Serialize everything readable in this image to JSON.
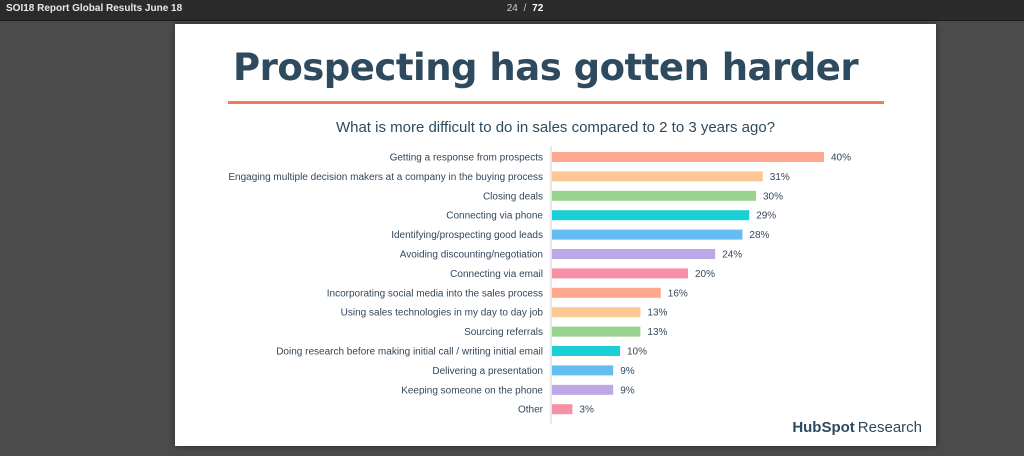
{
  "viewer": {
    "document_title": "SOI18 Report Global Results June 18",
    "current_page": "24",
    "separator": "/",
    "total_pages": "72"
  },
  "slide": {
    "title": "Prospecting has gotten harder",
    "question": "What is more difficult to do in sales compared to 2 to 3 years ago?",
    "brand_primary": "HubSpot",
    "brand_secondary": "Research",
    "accent_color": "#f2795b"
  },
  "chart_data": {
    "type": "bar",
    "orientation": "horizontal",
    "title": "What is more difficult to do in sales compared to 2 to 3 years ago?",
    "xlabel": "",
    "ylabel": "",
    "xlim": [
      0,
      40
    ],
    "grid": false,
    "value_suffix": "%",
    "categories": [
      "Getting a response from prospects",
      "Engaging multiple decision makers at a company in the buying process",
      "Closing deals",
      "Connecting via phone",
      "Identifying/prospecting good leads",
      "Avoiding discounting/negotiation",
      "Connecting via email",
      "Incorporating social media into the sales process",
      "Using sales technologies in my day to day job",
      "Sourcing referrals",
      "Doing research before making initial call / writing initial email",
      "Delivering a presentation",
      "Keeping someone on the phone",
      "Other"
    ],
    "values": [
      40,
      31,
      30,
      29,
      28,
      24,
      20,
      16,
      13,
      13,
      10,
      9,
      9,
      3
    ],
    "colors": [
      "#fda88f",
      "#fdc794",
      "#98d38e",
      "#1bcfd6",
      "#63bdf0",
      "#bca8e6",
      "#f590a6",
      "#fda88f",
      "#fdc794",
      "#98d38e",
      "#1bcfd6",
      "#63bdf0",
      "#bca8e6",
      "#f590a6"
    ]
  }
}
